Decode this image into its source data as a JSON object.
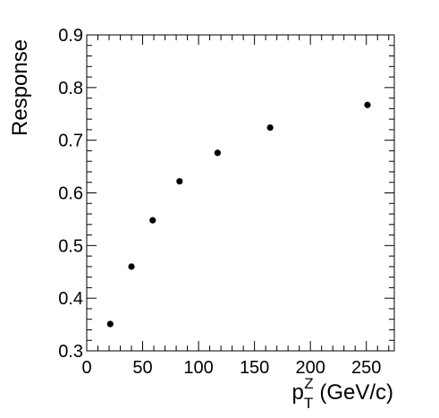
{
  "chart_data": {
    "type": "scatter",
    "title": "",
    "xlabel": {
      "main": "p",
      "sub": "T",
      "sup": "Z",
      "unit": " (GeV/c)"
    },
    "ylabel": "Response",
    "xlim": [
      0,
      275
    ],
    "ylim": [
      0.3,
      0.9
    ],
    "x_ticks": [
      0,
      50,
      100,
      150,
      200,
      250
    ],
    "y_ticks": [
      0.3,
      0.4,
      0.5,
      0.6,
      0.7,
      0.8,
      0.9
    ],
    "x_tick_labels": [
      "0",
      "50",
      "100",
      "150",
      "200",
      "250"
    ],
    "y_tick_labels": [
      "0.3",
      "0.4",
      "0.5",
      "0.6",
      "0.7",
      "0.8",
      "0.9"
    ],
    "grid": false,
    "marker_color": "#000000",
    "series": [
      {
        "x": [
          21,
          40,
          59,
          83,
          117,
          164,
          251
        ],
        "y": [
          0.351,
          0.46,
          0.548,
          0.622,
          0.676,
          0.724,
          0.767
        ],
        "yerr": [
          0.006,
          0.003,
          0.003,
          0.002,
          0.002,
          0.002,
          0.002
        ]
      }
    ]
  }
}
